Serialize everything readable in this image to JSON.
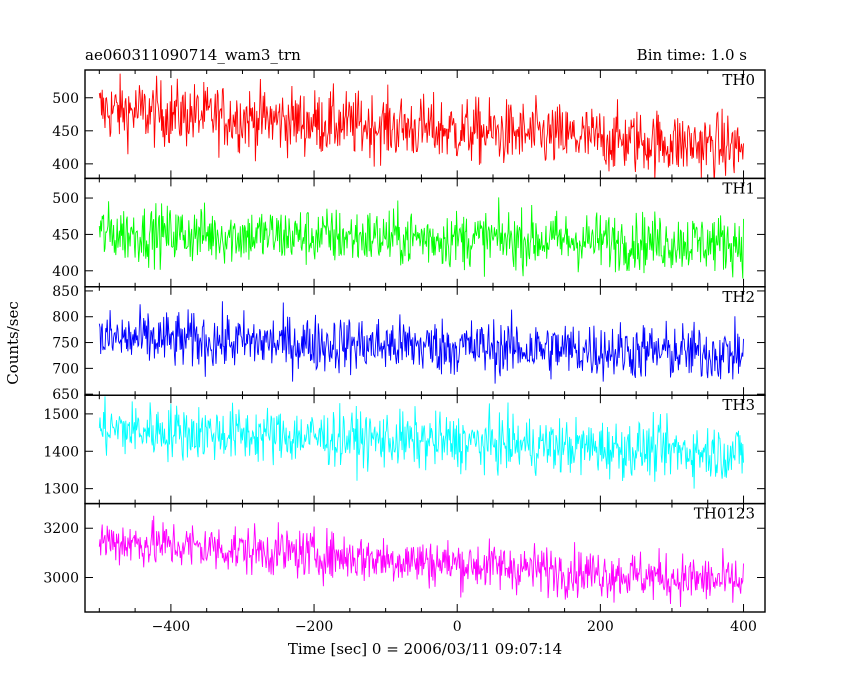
{
  "chart_data": {
    "type": "line",
    "title": "ae060311090714_wam3_trn",
    "bin_time": "Bin time: 1.0 s",
    "xlabel": "Time [sec] 0 = 2006/03/11 09:07:14",
    "ylabel": "Counts/sec",
    "xlim": [
      -520,
      430
    ],
    "x_ticks": [
      -400,
      -200,
      0,
      200,
      400
    ],
    "x_tick_labels": [
      "−400",
      "−200",
      "0",
      "200",
      "400"
    ],
    "x_start": -500,
    "x_end": 400,
    "bin_width": 1.0,
    "series": [
      {
        "name": "TH0",
        "color": "#ff0000",
        "ylim": [
          378,
          542
        ],
        "y_ticks": [
          400,
          450,
          500
        ],
        "y_tick_labels": [
          "400",
          "450",
          "500"
        ],
        "mean_start": 482,
        "mean_end": 425,
        "noise": 25
      },
      {
        "name": "TH1",
        "color": "#00ff00",
        "ylim": [
          378,
          527
        ],
        "y_ticks": [
          400,
          450,
          500
        ],
        "y_tick_labels": [
          "400",
          "450",
          "500"
        ],
        "mean_start": 452,
        "mean_end": 438,
        "noise": 20
      },
      {
        "name": "TH2",
        "color": "#0000ff",
        "ylim": [
          648,
          858
        ],
        "y_ticks": [
          650,
          700,
          750,
          800,
          850
        ],
        "y_tick_labels": [
          "650",
          "700",
          "750",
          "800",
          "850"
        ],
        "mean_start": 758,
        "mean_end": 728,
        "noise": 28
      },
      {
        "name": "TH3",
        "color": "#00ffff",
        "ylim": [
          1260,
          1550
        ],
        "y_ticks": [
          1300,
          1400,
          1500
        ],
        "y_tick_labels": [
          "1300",
          "1400",
          "1500"
        ],
        "mean_start": 1460,
        "mean_end": 1395,
        "noise": 38
      },
      {
        "name": "TH0123",
        "color": "#ff00ff",
        "ylim": [
          2860,
          3300
        ],
        "y_ticks": [
          3000,
          3200
        ],
        "y_tick_labels": [
          "3000",
          "3200"
        ],
        "mean_start": 3150,
        "mean_end": 2980,
        "noise": 50
      }
    ]
  }
}
